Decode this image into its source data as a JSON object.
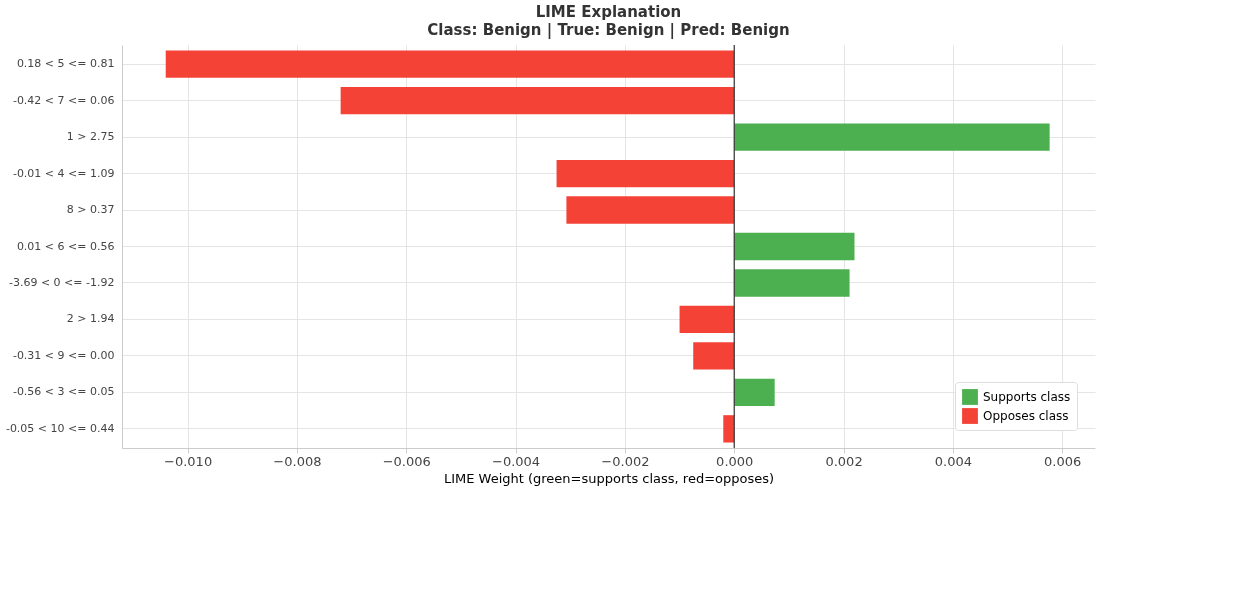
{
  "chart_data": {
    "type": "bar",
    "orientation": "horizontal",
    "title": "LIME Explanation",
    "subtitle": "Class: Benign  |  True: Benign  |  Pred: Benign",
    "xlabel": "LIME Weight  (green=supports class, red=opposes)",
    "categories": [
      "0.18 < 5 <= 0.81",
      "-0.42 < 7 <= 0.06",
      "1 > 2.75",
      "-0.01 < 4 <= 1.09",
      "8 > 0.37",
      "0.01 < 6 <= 0.56",
      "-3.69 < 0 <= -1.92",
      "2 > 1.94",
      "-0.31 < 9 <= 0.00",
      "-0.56 < 3 <= 0.05",
      "-0.05 < 10 <= 0.44"
    ],
    "series": [
      {
        "name": "Supports class",
        "color": "#4caf50",
        "values": [
          null,
          null,
          0.00577,
          null,
          null,
          0.0022,
          0.00211,
          null,
          null,
          0.00074,
          null
        ]
      },
      {
        "name": "Opposes class",
        "color": "#f44336",
        "values": [
          -0.0104,
          -0.0072,
          null,
          -0.00325,
          -0.00307,
          null,
          null,
          -0.001,
          -0.00075,
          null,
          -0.0002
        ]
      }
    ],
    "xlim": [
      -0.0112,
      0.0066
    ],
    "xticks": [
      {
        "value": -0.01,
        "label": "−0.010"
      },
      {
        "value": -0.008,
        "label": "−0.008"
      },
      {
        "value": -0.006,
        "label": "−0.006"
      },
      {
        "value": -0.004,
        "label": "−0.004"
      },
      {
        "value": -0.002,
        "label": "−0.002"
      },
      {
        "value": 0,
        "label": "0.000"
      },
      {
        "value": 0.002,
        "label": "0.002"
      },
      {
        "value": 0.004,
        "label": "0.004"
      },
      {
        "value": 0.006,
        "label": "0.006"
      }
    ],
    "ref_lines": [
      {
        "axis": "x",
        "value": 0,
        "label": null,
        "color": "#333333"
      }
    ],
    "grid": true,
    "legend": "bottom right"
  }
}
